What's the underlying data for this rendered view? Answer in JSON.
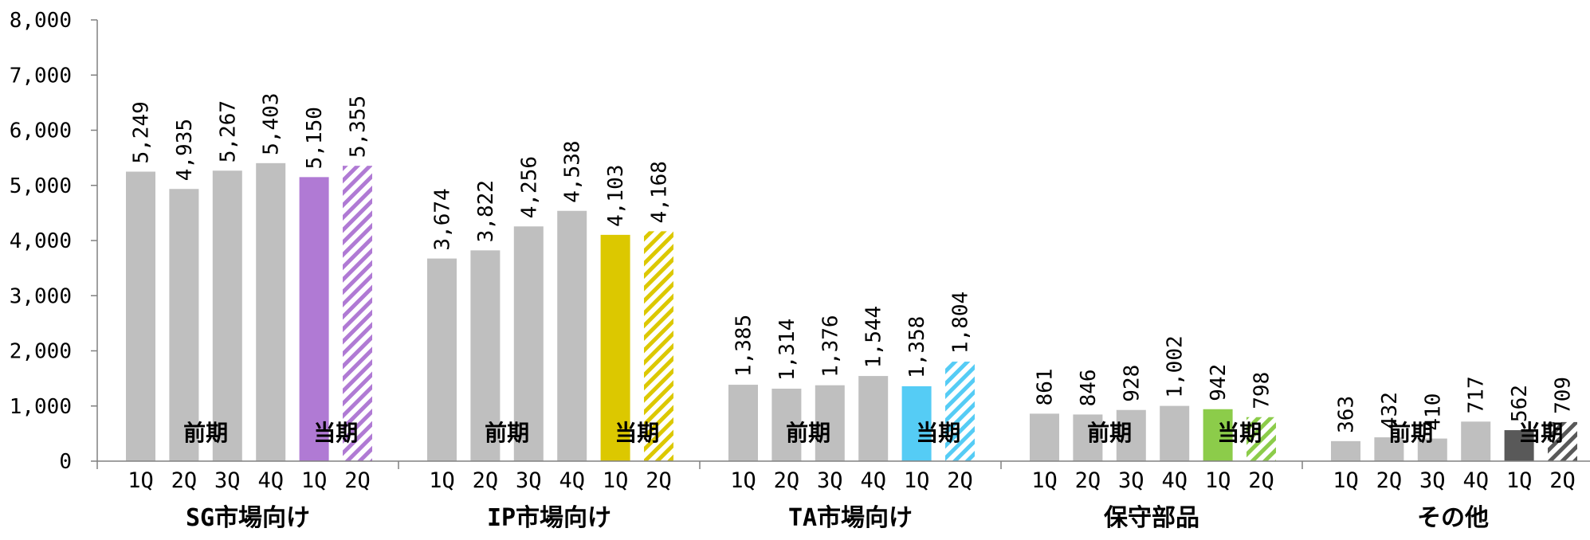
{
  "chart_data": {
    "type": "bar",
    "ylim": [
      0,
      8000
    ],
    "y_ticks": [
      "0",
      "1,000",
      "2,000",
      "3,000",
      "4,000",
      "5,000",
      "6,000",
      "7,000",
      "8,000"
    ],
    "y_tick_values": [
      0,
      1000,
      2000,
      3000,
      4000,
      5000,
      6000,
      7000,
      8000
    ],
    "grid": false,
    "period_labels": {
      "previous": "前期",
      "current": "当期"
    },
    "groups": [
      {
        "name": "SG市場向け",
        "quarters": [
          "1Q",
          "2Q",
          "3Q",
          "4Q",
          "1Q",
          "2Q"
        ],
        "values": [
          5249,
          4935,
          5267,
          5403,
          5150,
          5355
        ],
        "value_labels": [
          "5,249",
          "4,935",
          "5,267",
          "5,403",
          "5,150",
          "5,355"
        ],
        "current_color": "#b07ad4"
      },
      {
        "name": "IP市場向け",
        "quarters": [
          "1Q",
          "2Q",
          "3Q",
          "4Q",
          "1Q",
          "2Q"
        ],
        "values": [
          3674,
          3822,
          4256,
          4538,
          4103,
          4168
        ],
        "value_labels": [
          "3,674",
          "3,822",
          "4,256",
          "4,538",
          "4,103",
          "4,168"
        ],
        "current_color": "#dcc800"
      },
      {
        "name": "TA市場向け",
        "quarters": [
          "1Q",
          "2Q",
          "3Q",
          "4Q",
          "1Q",
          "2Q"
        ],
        "values": [
          1385,
          1314,
          1376,
          1544,
          1358,
          1804
        ],
        "value_labels": [
          "1,385",
          "1,314",
          "1,376",
          "1,544",
          "1,358",
          "1,804"
        ],
        "current_color": "#55ccf5"
      },
      {
        "name": "保守部品",
        "quarters": [
          "1Q",
          "2Q",
          "3Q",
          "4Q",
          "1Q",
          "2Q"
        ],
        "values": [
          861,
          846,
          928,
          1002,
          942,
          798
        ],
        "value_labels": [
          "861",
          "846",
          "928",
          "1,002",
          "942",
          "798"
        ],
        "current_color": "#8ccc4a"
      },
      {
        "name": "その他",
        "quarters": [
          "1Q",
          "2Q",
          "3Q",
          "4Q",
          "1Q",
          "2Q"
        ],
        "values": [
          363,
          432,
          410,
          717,
          562,
          709
        ],
        "value_labels": [
          "363",
          "432",
          "410",
          "717",
          "562",
          "709"
        ],
        "current_color": "#595959"
      }
    ],
    "colors": {
      "previous": "#bfbfbf",
      "axis": "#808080"
    }
  }
}
